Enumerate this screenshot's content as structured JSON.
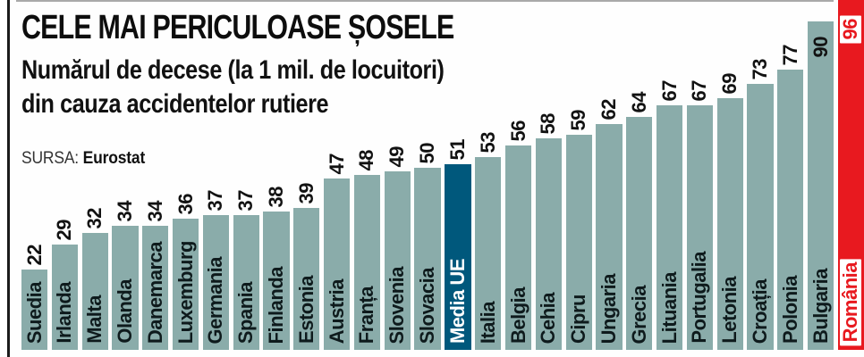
{
  "header": {
    "title": "CELE MAI PERICULOASE ȘOSELE",
    "subtitle_line1": "Numărul de decese (la 1 mil. de locuitori)",
    "subtitle_line2": "din cauza accidentelor rutiere",
    "source_label": "SURSA:",
    "source_value": "Eurostat"
  },
  "chart_data": {
    "type": "bar",
    "title": "CELE MAI PERICULOASE ȘOSELE",
    "subtitle": "Numărul de decese (la 1 mil. de locuitori) din cauza accidentelor rutiere",
    "source": "Eurostat",
    "orientation": "vertical",
    "grid": false,
    "legend": "none",
    "xlabel": "",
    "ylabel": "Decese la 1 mil. de locuitori",
    "ylim": [
      0,
      96
    ],
    "categories": [
      "Suedia",
      "Irlanda",
      "Malta",
      "Olanda",
      "Danemarca",
      "Luxemburg",
      "Germania",
      "Spania",
      "Finlanda",
      "Estonia",
      "Austria",
      "Franța",
      "Slovenia",
      "Slovacia",
      "Media UE",
      "Italia",
      "Belgia",
      "Cehia",
      "Cipru",
      "Ungaria",
      "Grecia",
      "Lituania",
      "Portugalia",
      "Letonia",
      "Croația",
      "Polonia",
      "Bulgaria",
      "România"
    ],
    "values": [
      22,
      29,
      32,
      34,
      34,
      36,
      37,
      37,
      38,
      39,
      47,
      48,
      49,
      50,
      51,
      53,
      56,
      58,
      59,
      62,
      64,
      67,
      67,
      69,
      73,
      77,
      90,
      96
    ],
    "colors": {
      "bar": "#8aacaa",
      "eu_average_bar": "#00587c",
      "max_bar": "#e8191f",
      "value_text": "#121212",
      "name_text": "#0e1a1c",
      "name_text_on_dark": "#ffffff",
      "badge_background": "#ffffff",
      "badge_text": "#e8191f"
    },
    "highlights": {
      "eu_average": {
        "label": "Media UE",
        "color": "#00587c"
      },
      "max": {
        "label": "România",
        "color": "#e8191f"
      }
    },
    "value_inside_bar": [
      "Bulgaria",
      "România"
    ],
    "label_on_white_badge": [
      "România"
    ]
  }
}
